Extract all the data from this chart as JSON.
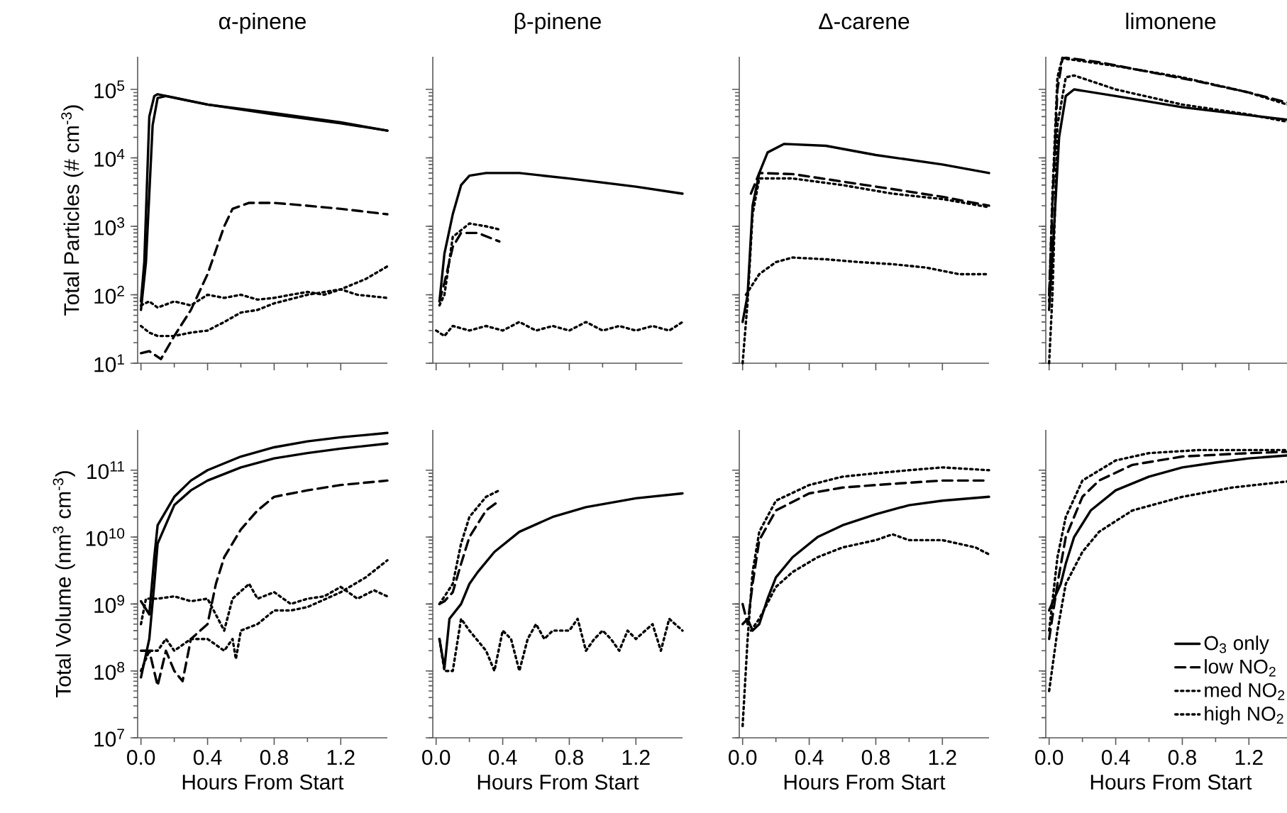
{
  "chart_data": [
    {
      "type": "line",
      "title": "α-pinene",
      "ylabel": "Total Particles (# cm$^{-3}$)",
      "log": "y",
      "tick_labels": "y",
      "xlim": [
        -0.02,
        1.48
      ],
      "ylim": [
        10,
        300000
      ],
      "xticks": [
        {
          "value": 0,
          "label": null
        },
        {
          "value": 0.4,
          "label": null
        },
        {
          "value": 0.8,
          "label": null
        },
        {
          "value": 1.2,
          "label": null
        }
      ],
      "yticks": [
        {
          "value": 10,
          "label": "10$^{1}$"
        },
        {
          "value": 100,
          "label": "10$^{2}$"
        },
        {
          "value": 1000,
          "label": "10$^{3}$"
        },
        {
          "value": 10000,
          "label": "10$^{4}$"
        },
        {
          "value": 100000,
          "label": "10$^{5}$"
        }
      ],
      "series": [
        {
          "color": "#000000",
          "line_style": "solid",
          "x": [
            0,
            0.02,
            0.05,
            0.08,
            0.1,
            0.4,
            0.8,
            1.2,
            1.48
          ],
          "values": [
            80,
            300,
            40000,
            80000,
            85000,
            60000,
            45000,
            33000,
            25000
          ]
        },
        {
          "color": "#000000",
          "line_style": "solid",
          "x": [
            0,
            0.03,
            0.07,
            0.1,
            0.15,
            0.4,
            0.8,
            1.2,
            1.48
          ],
          "values": [
            60,
            300,
            30000,
            75000,
            80000,
            60000,
            43000,
            32000,
            25000
          ]
        },
        {
          "color": "#000000",
          "line_style": "dashed",
          "x": [
            0,
            0.05,
            0.12,
            0.2,
            0.3,
            0.4,
            0.5,
            0.55,
            0.65,
            0.8,
            1.0,
            1.2,
            1.48
          ],
          "values": [
            14,
            15,
            11.5,
            25,
            60,
            200,
            1000,
            1800,
            2200,
            2200,
            2000,
            1800,
            1500
          ]
        },
        {
          "color": "#000000",
          "line_style": "dotted",
          "x": [
            0,
            0.05,
            0.1,
            0.2,
            0.3,
            0.4,
            0.5,
            0.6,
            0.7,
            0.8,
            1.0,
            1.2,
            1.35,
            1.48
          ],
          "values": [
            35,
            28,
            25,
            25,
            28,
            30,
            40,
            55,
            60,
            75,
            100,
            120,
            170,
            260
          ]
        },
        {
          "color": "#000000",
          "line_style": "dotted",
          "x": [
            0,
            0.05,
            0.1,
            0.2,
            0.3,
            0.4,
            0.5,
            0.6,
            0.7,
            0.8,
            0.9,
            1.0,
            1.1,
            1.2,
            1.3,
            1.48
          ],
          "values": [
            70,
            80,
            65,
            80,
            70,
            100,
            90,
            100,
            85,
            90,
            100,
            110,
            100,
            120,
            100,
            90
          ]
        }
      ]
    },
    {
      "type": "line",
      "title": "β-pinene",
      "log": "y",
      "tick_labels": false,
      "xlim": [
        -0.02,
        1.48
      ],
      "ylim": [
        10,
        300000
      ],
      "xticks": [
        {
          "value": 0,
          "label": null
        },
        {
          "value": 0.4,
          "label": null
        },
        {
          "value": 0.8,
          "label": null
        },
        {
          "value": 1.2,
          "label": null
        }
      ],
      "yticks": [
        {
          "value": 10,
          "label": null
        },
        {
          "value": 100,
          "label": null
        },
        {
          "value": 1000,
          "label": null
        },
        {
          "value": 10000,
          "label": null
        },
        {
          "value": 100000,
          "label": null
        }
      ],
      "series": [
        {
          "color": "#000000",
          "line_style": "solid",
          "x": [
            0.02,
            0.05,
            0.1,
            0.15,
            0.2,
            0.3,
            0.5,
            0.8,
            1.2,
            1.48
          ],
          "values": [
            80,
            400,
            1500,
            4000,
            5500,
            6000,
            6000,
            5000,
            3800,
            3000
          ]
        },
        {
          "color": "#000000",
          "line_style": "dashed",
          "x": [
            0.02,
            0.05,
            0.1,
            0.15,
            0.25,
            0.38
          ],
          "values": [
            80,
            150,
            500,
            800,
            800,
            600
          ]
        },
        {
          "color": "#000000",
          "line_style": "dotted",
          "x": [
            0.02,
            0.05,
            0.1,
            0.2,
            0.3,
            0.38
          ],
          "values": [
            70,
            100,
            700,
            1100,
            1000,
            900
          ]
        },
        {
          "color": "#000000",
          "line_style": "dotted",
          "x": [
            0,
            0.05,
            0.1,
            0.2,
            0.3,
            0.4,
            0.5,
            0.6,
            0.7,
            0.8,
            0.9,
            1.0,
            1.1,
            1.2,
            1.3,
            1.4,
            1.48
          ],
          "values": [
            30,
            25,
            35,
            30,
            35,
            30,
            40,
            30,
            35,
            30,
            40,
            30,
            35,
            30,
            35,
            30,
            40
          ]
        }
      ]
    },
    {
      "type": "line",
      "title": "Δ-carene",
      "log": "y",
      "tick_labels": false,
      "xlim": [
        -0.02,
        1.48
      ],
      "ylim": [
        10,
        300000
      ],
      "xticks": [
        {
          "value": 0,
          "label": null
        },
        {
          "value": 0.4,
          "label": null
        },
        {
          "value": 0.8,
          "label": null
        },
        {
          "value": 1.2,
          "label": null
        }
      ],
      "yticks": [
        {
          "value": 10,
          "label": null
        },
        {
          "value": 100,
          "label": null
        },
        {
          "value": 1000,
          "label": null
        },
        {
          "value": 10000,
          "label": null
        },
        {
          "value": 100000,
          "label": null
        }
      ],
      "series": [
        {
          "color": "#000000",
          "line_style": "solid",
          "x": [
            0,
            0.03,
            0.06,
            0.1,
            0.15,
            0.25,
            0.5,
            0.8,
            1.2,
            1.48
          ],
          "values": [
            40,
            100,
            2000,
            6000,
            12000,
            16000,
            15000,
            11000,
            8000,
            6000
          ]
        },
        {
          "color": "#000000",
          "line_style": "dashed",
          "x": [
            0.05,
            0.1,
            0.3,
            0.6,
            0.9,
            1.2,
            1.48
          ],
          "values": [
            3000,
            6000,
            5800,
            4500,
            3500,
            2700,
            2000
          ]
        },
        {
          "color": "#000000",
          "line_style": "dotted",
          "x": [
            0,
            0.03,
            0.06,
            0.1,
            0.3,
            0.6,
            0.9,
            1.2,
            1.48
          ],
          "values": [
            10,
            80,
            1500,
            5000,
            5000,
            4000,
            3000,
            2500,
            1900
          ]
        },
        {
          "color": "#000000",
          "line_style": "dotted",
          "x": [
            0.02,
            0.05,
            0.1,
            0.2,
            0.3,
            0.5,
            0.7,
            0.9,
            1.1,
            1.3,
            1.48
          ],
          "values": [
            100,
            130,
            200,
            300,
            350,
            330,
            300,
            280,
            250,
            200,
            200
          ]
        }
      ]
    },
    {
      "type": "line",
      "title": "limonene",
      "log": "y",
      "tick_labels": false,
      "xlim": [
        -0.02,
        1.48
      ],
      "ylim": [
        10,
        300000
      ],
      "xticks": [
        {
          "value": 0,
          "label": null
        },
        {
          "value": 0.4,
          "label": null
        },
        {
          "value": 0.8,
          "label": null
        },
        {
          "value": 1.2,
          "label": null
        }
      ],
      "yticks": [
        {
          "value": 10,
          "label": null
        },
        {
          "value": 100,
          "label": null
        },
        {
          "value": 1000,
          "label": null
        },
        {
          "value": 10000,
          "label": null
        },
        {
          "value": 100000,
          "label": null
        }
      ],
      "series": [
        {
          "color": "#000000",
          "line_style": "solid",
          "x": [
            0,
            0.03,
            0.06,
            0.1,
            0.15,
            0.4,
            0.8,
            1.2,
            1.48
          ],
          "values": [
            60,
            1000,
            20000,
            80000,
            100000,
            80000,
            55000,
            42000,
            35000
          ]
        },
        {
          "color": "#000000",
          "line_style": "dashed",
          "x": [
            0,
            0.02,
            0.05,
            0.08,
            0.1,
            0.3,
            0.6,
            0.9,
            1.2,
            1.48
          ],
          "values": [
            100,
            2000,
            100000,
            280000,
            290000,
            250000,
            180000,
            130000,
            90000,
            60000
          ]
        },
        {
          "color": "#000000",
          "line_style": "dotted",
          "x": [
            0,
            0.02,
            0.05,
            0.08,
            0.1,
            0.4,
            0.8,
            1.2,
            1.48
          ],
          "values": [
            80,
            3000,
            150000,
            290000,
            280000,
            220000,
            150000,
            90000,
            55000
          ]
        },
        {
          "color": "#000000",
          "line_style": "dotted",
          "x": [
            0,
            0.02,
            0.05,
            0.1,
            0.15,
            0.4,
            0.8,
            1.2,
            1.48
          ],
          "values": [
            10,
            100,
            30000,
            150000,
            160000,
            100000,
            60000,
            43000,
            32000
          ]
        }
      ]
    },
    {
      "type": "line",
      "xlabel": "Hours From Start",
      "ylabel": "Total Volume (nm$^{3}$ cm$^{-3}$)",
      "log": "y",
      "xlim": [
        -0.02,
        1.48
      ],
      "ylim": [
        10000000,
        400000000000
      ],
      "xticks": [
        {
          "value": 0,
          "label": "0.0"
        },
        0.4,
        0.8,
        1.2
      ],
      "yticks": [
        {
          "value": 10000000,
          "label": "10$^{7}$"
        },
        {
          "value": 100000000,
          "label": "10$^{8}$"
        },
        {
          "value": 1000000000,
          "label": "10$^{9}$"
        },
        {
          "value": 10000000000,
          "label": "10$^{10}$"
        },
        {
          "value": 100000000000,
          "label": "10$^{11}$"
        }
      ],
      "series": [
        {
          "color": "#000000",
          "line_style": "solid",
          "x": [
            0,
            0.05,
            0.08,
            0.1,
            0.2,
            0.3,
            0.4,
            0.6,
            0.8,
            1.0,
            1.2,
            1.48
          ],
          "values": [
            1100000000.0,
            700000000.0,
            5000000000.0,
            15000000000.0,
            40000000000.0,
            70000000000.0,
            100000000000.0,
            160000000000.0,
            220000000000.0,
            270000000000.0,
            310000000000.0,
            360000000000.0
          ]
        },
        {
          "color": "#000000",
          "line_style": "solid",
          "x": [
            0,
            0.05,
            0.08,
            0.1,
            0.2,
            0.3,
            0.4,
            0.6,
            0.8,
            1.0,
            1.2,
            1.48
          ],
          "values": [
            80000000.0,
            300000000.0,
            2000000000.0,
            8000000000.0,
            30000000000.0,
            50000000000.0,
            70000000000.0,
            110000000000.0,
            150000000000.0,
            180000000000.0,
            210000000000.0,
            250000000000.0
          ]
        },
        {
          "color": "#000000",
          "line_style": "dashed",
          "x": [
            0,
            0.05,
            0.1,
            0.15,
            0.2,
            0.25,
            0.3,
            0.4,
            0.45,
            0.5,
            0.6,
            0.7,
            0.8,
            1.0,
            1.2,
            1.48
          ],
          "values": [
            200000000.0,
            200000000.0,
            60000000.0,
            200000000.0,
            100000000.0,
            70000000.0,
            300000000.0,
            500000000.0,
            2000000000.0,
            5000000000.0,
            13000000000.0,
            25000000000.0,
            40000000000.0,
            50000000000.0,
            60000000000.0,
            70000000000.0
          ]
        },
        {
          "color": "#000000",
          "line_style": "dotted",
          "x": [
            0,
            0.05,
            0.1,
            0.15,
            0.2,
            0.3,
            0.4,
            0.5,
            0.55,
            0.57,
            0.6,
            0.7,
            0.8,
            0.9,
            1.0,
            1.2,
            1.35,
            1.48
          ],
          "values": [
            100000000.0,
            200000000.0,
            200000000.0,
            300000000.0,
            200000000.0,
            300000000.0,
            300000000.0,
            200000000.0,
            300000000.0,
            150000000.0,
            400000000.0,
            500000000.0,
            800000000.0,
            800000000.0,
            900000000.0,
            1500000000.0,
            2500000000.0,
            4500000000.0
          ]
        },
        {
          "color": "#000000",
          "line_style": "dotted",
          "x": [
            0,
            0.03,
            0.1,
            0.2,
            0.3,
            0.4,
            0.5,
            0.55,
            0.65,
            0.7,
            0.8,
            0.9,
            1.0,
            1.1,
            1.2,
            1.3,
            1.4,
            1.48
          ],
          "values": [
            500000000.0,
            1200000000.0,
            1200000000.0,
            1300000000.0,
            1100000000.0,
            1200000000.0,
            400000000.0,
            1200000000.0,
            2000000000.0,
            1200000000.0,
            1500000000.0,
            1000000000.0,
            1200000000.0,
            1300000000.0,
            1800000000.0,
            1200000000.0,
            1600000000.0,
            1300000000.0
          ]
        }
      ]
    },
    {
      "type": "line",
      "xlabel": "Hours From Start",
      "log": "y",
      "tick_labels": "x",
      "xlim": [
        -0.02,
        1.48
      ],
      "ylim": [
        10000000,
        400000000000
      ],
      "xticks": [
        {
          "value": 0,
          "label": "0.0"
        },
        0.4,
        0.8,
        1.2
      ],
      "yticks": [
        {
          "value": 10000000,
          "label": null
        },
        {
          "value": 100000000,
          "label": null
        },
        {
          "value": 1000000000,
          "label": null
        },
        {
          "value": 10000000000,
          "label": null
        },
        {
          "value": 100000000000,
          "label": null
        }
      ],
      "series": [
        {
          "color": "#000000",
          "line_style": "solid",
          "x": [
            0.02,
            0.05,
            0.08,
            0.15,
            0.2,
            0.25,
            0.35,
            0.5,
            0.7,
            0.9,
            1.2,
            1.48
          ],
          "values": [
            300000000.0,
            110000000.0,
            600000000.0,
            1000000000.0,
            2000000000.0,
            3000000000.0,
            6000000000.0,
            12000000000.0,
            20000000000.0,
            28000000000.0,
            38000000000.0,
            45000000000.0
          ]
        },
        {
          "color": "#000000",
          "line_style": "dashed",
          "x": [
            0.02,
            0.05,
            0.1,
            0.15,
            0.2,
            0.3,
            0.38
          ],
          "values": [
            1000000000.0,
            1100000000.0,
            1500000000.0,
            4000000000.0,
            10000000000.0,
            25000000000.0,
            35000000000.0
          ]
        },
        {
          "color": "#000000",
          "line_style": "dotted",
          "x": [
            0.02,
            0.1,
            0.15,
            0.2,
            0.3,
            0.38
          ],
          "values": [
            1000000000.0,
            2000000000.0,
            8000000000.0,
            20000000000.0,
            40000000000.0,
            50000000000.0
          ]
        },
        {
          "color": "#000000",
          "line_style": "dotted",
          "x": [
            0.02,
            0.05,
            0.1,
            0.15,
            0.2,
            0.3,
            0.35,
            0.4,
            0.45,
            0.5,
            0.55,
            0.6,
            0.65,
            0.7,
            0.8,
            0.85,
            0.9,
            0.95,
            1.0,
            1.05,
            1.1,
            1.15,
            1.2,
            1.3,
            1.35,
            1.4,
            1.48
          ],
          "values": [
            300000000.0,
            100000000.0,
            100000000.0,
            600000000.0,
            400000000.0,
            200000000.0,
            100000000.0,
            400000000.0,
            300000000.0,
            100000000.0,
            300000000.0,
            500000000.0,
            300000000.0,
            400000000.0,
            400000000.0,
            600000000.0,
            200000000.0,
            300000000.0,
            400000000.0,
            300000000.0,
            200000000.0,
            400000000.0,
            300000000.0,
            500000000.0,
            200000000.0,
            600000000.0,
            400000000.0
          ]
        }
      ]
    },
    {
      "type": "line",
      "xlabel": "Hours From Start",
      "log": "y",
      "tick_labels": "x",
      "xlim": [
        -0.02,
        1.48
      ],
      "ylim": [
        10000000,
        400000000000
      ],
      "xticks": [
        {
          "value": 0,
          "label": "0.0"
        },
        0.4,
        0.8,
        1.2
      ],
      "yticks": [
        {
          "value": 10000000,
          "label": null
        },
        {
          "value": 100000000,
          "label": null
        },
        {
          "value": 1000000000,
          "label": null
        },
        {
          "value": 10000000000,
          "label": null
        },
        {
          "value": 100000000000,
          "label": null
        }
      ],
      "series": [
        {
          "color": "#000000",
          "line_style": "solid",
          "x": [
            0,
            0.03,
            0.06,
            0.1,
            0.15,
            0.2,
            0.3,
            0.45,
            0.6,
            0.8,
            1.0,
            1.2,
            1.48
          ],
          "values": [
            500000000.0,
            600000000.0,
            400000000.0,
            500000000.0,
            1200000000.0,
            2500000000.0,
            5000000000.0,
            10000000000.0,
            15000000000.0,
            22000000000.0,
            30000000000.0,
            35000000000.0,
            40000000000.0
          ]
        },
        {
          "color": "#000000",
          "line_style": "dashed",
          "x": [
            0,
            0.03,
            0.06,
            0.1,
            0.2,
            0.4,
            0.6,
            0.8,
            1.0,
            1.2,
            1.48
          ],
          "values": [
            1000000000.0,
            500000000.0,
            2000000000.0,
            9000000000.0,
            25000000000.0,
            45000000000.0,
            55000000000.0,
            60000000000.0,
            65000000000.0,
            70000000000.0,
            70000000000.0
          ]
        },
        {
          "color": "#000000",
          "line_style": "dotted",
          "x": [
            0,
            0.03,
            0.06,
            0.1,
            0.2,
            0.4,
            0.6,
            0.8,
            1.0,
            1.2,
            1.48
          ],
          "values": [
            15000000.0,
            300000000.0,
            3000000000.0,
            12000000000.0,
            35000000000.0,
            60000000000.0,
            80000000000.0,
            90000000000.0,
            100000000000.0,
            110000000000.0,
            100000000000.0
          ]
        },
        {
          "color": "#000000",
          "line_style": "dotted",
          "x": [
            0.05,
            0.1,
            0.2,
            0.3,
            0.45,
            0.6,
            0.8,
            0.9,
            1.0,
            1.2,
            1.4,
            1.48
          ],
          "values": [
            400000000.0,
            600000000.0,
            1800000000.0,
            3000000000.0,
            5000000000.0,
            7000000000.0,
            9000000000.0,
            11000000000.0,
            9000000000.0,
            9000000000.0,
            7000000000.0,
            5500000000.0
          ]
        }
      ]
    },
    {
      "type": "line",
      "xlabel": "Hours From Start",
      "log": "y",
      "tick_labels": "x",
      "legend": "bottom right",
      "xlim": [
        -0.02,
        1.48
      ],
      "ylim": [
        10000000,
        400000000000
      ],
      "xticks": [
        {
          "value": 0,
          "label": "0.0"
        },
        0.4,
        0.8,
        1.2
      ],
      "yticks": [
        {
          "value": 10000000,
          "label": null
        },
        {
          "value": 100000000,
          "label": null
        },
        {
          "value": 1000000000,
          "label": null
        },
        {
          "value": 10000000000,
          "label": null
        },
        {
          "value": 100000000000,
          "label": null
        }
      ],
      "series": [
        {
          "name": "O$_{3}$ only",
          "color": "#000000",
          "line_style": "solid",
          "x": [
            0,
            0.03,
            0.07,
            0.1,
            0.15,
            0.25,
            0.4,
            0.6,
            0.8,
            1.0,
            1.2,
            1.48
          ],
          "values": [
            800000000.0,
            1200000000.0,
            2000000000.0,
            4000000000.0,
            10000000000.0,
            25000000000.0,
            50000000000.0,
            80000000000.0,
            110000000000.0,
            130000000000.0,
            150000000000.0,
            170000000000.0
          ]
        },
        {
          "name": "low NO$_{2}$",
          "color": "#000000",
          "line_style": "dashed",
          "x": [
            0,
            0.05,
            0.1,
            0.2,
            0.3,
            0.5,
            0.8,
            1.2,
            1.48
          ],
          "values": [
            300000000.0,
            2000000000.0,
            10000000000.0,
            40000000000.0,
            70000000000.0,
            120000000000.0,
            160000000000.0,
            180000000000.0,
            190000000000.0
          ]
        },
        {
          "name": "med NO$_{2}$",
          "color": "#000000",
          "line_style": "dotted",
          "x": [
            0,
            0.05,
            0.1,
            0.2,
            0.4,
            0.6,
            0.9,
            1.2,
            1.48
          ],
          "values": [
            400000000.0,
            5000000000.0,
            20000000000.0,
            70000000000.0,
            140000000000.0,
            180000000000.0,
            200000000000.0,
            200000000000.0,
            200000000000.0
          ]
        },
        {
          "name": "high NO$_{2}$",
          "color": "#000000",
          "line_style": "dotted",
          "x": [
            0,
            0.05,
            0.1,
            0.2,
            0.3,
            0.5,
            0.8,
            1.1,
            1.48
          ],
          "values": [
            50000000.0,
            400000000.0,
            2000000000.0,
            6000000000.0,
            12000000000.0,
            25000000000.0,
            40000000000.0,
            55000000000.0,
            70000000000.0
          ]
        }
      ]
    }
  ]
}
